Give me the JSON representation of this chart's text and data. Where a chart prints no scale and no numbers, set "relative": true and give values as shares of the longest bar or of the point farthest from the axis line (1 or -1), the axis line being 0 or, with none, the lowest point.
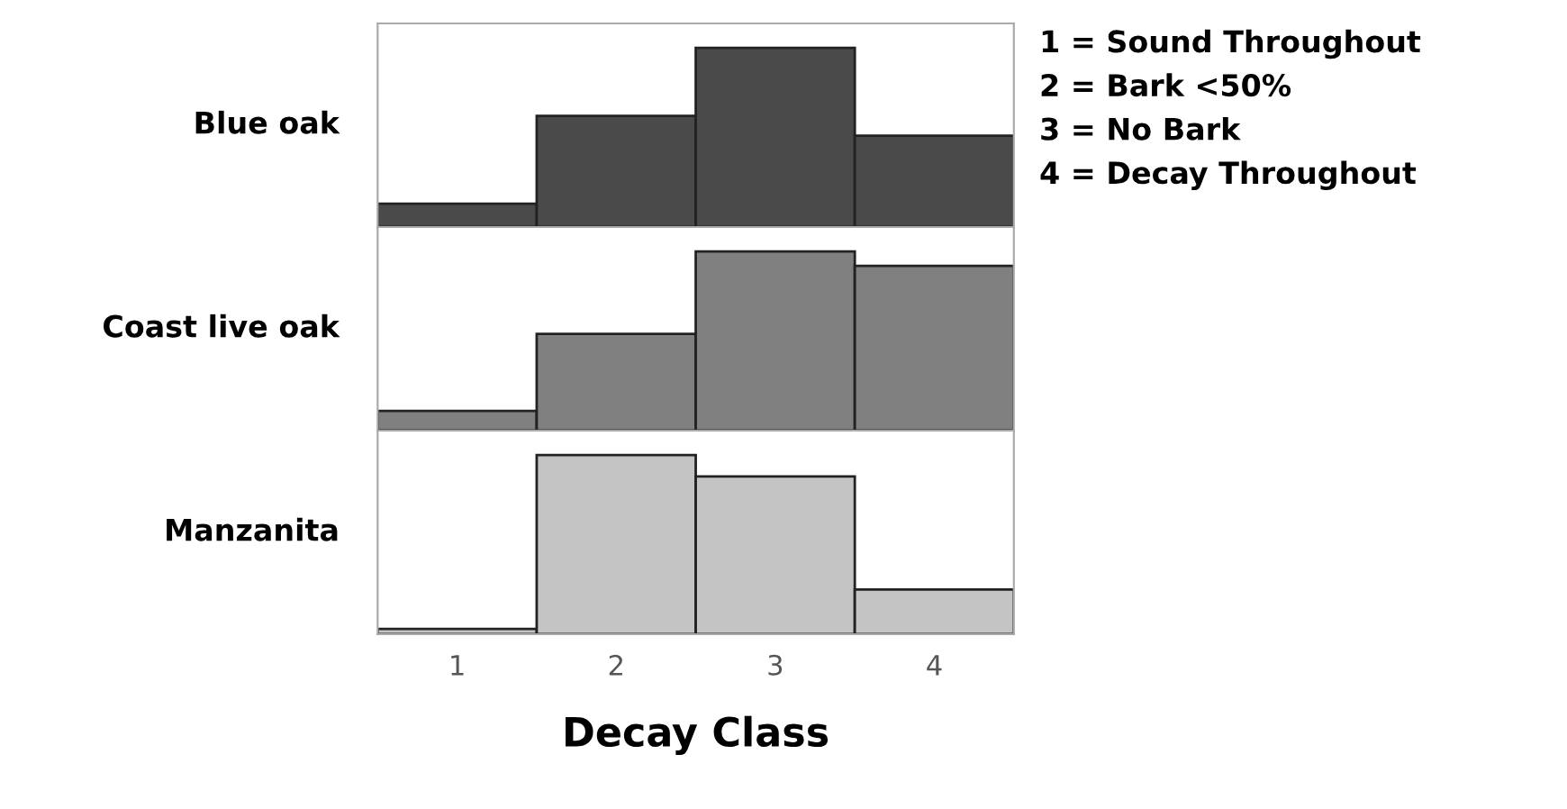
{
  "chart_data": [
    {
      "type": "bar",
      "ylabel": "Blue oak",
      "categories": [
        "1",
        "2",
        "3",
        "4"
      ],
      "values": [
        0.13,
        0.62,
        1,
        0.51
      ],
      "color": "#4a4a4a",
      "relative": true,
      "tick_labels": false,
      "annotations": [
        "1 = Sound Throughout",
        "2 = Bark <50%",
        "3 = No Bark",
        "4 = Decay Throughout"
      ]
    },
    {
      "type": "bar",
      "ylabel": "Coast live oak",
      "categories": [
        "1",
        "2",
        "3",
        "4"
      ],
      "values": [
        0.11,
        0.54,
        1,
        0.92
      ],
      "color": "#808080",
      "relative": true,
      "tick_labels": false
    },
    {
      "type": "bar",
      "ylabel": "Manzanita",
      "xlabel": "Decay Class",
      "categories": [
        "1",
        "2",
        "3",
        "4"
      ],
      "values": [
        0.03,
        1,
        0.88,
        0.25
      ],
      "color": "#c4c4c4",
      "relative": true,
      "tick_labels": "x"
    }
  ]
}
